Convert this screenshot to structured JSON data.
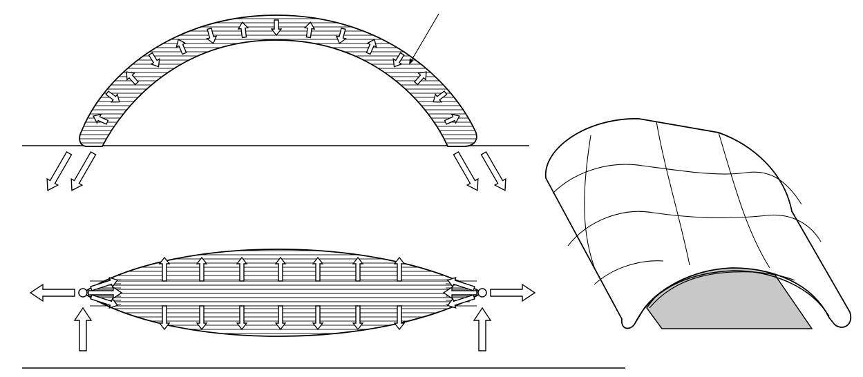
{
  "figure": {
    "stroke_color": "#000000",
    "fill_color": "#ffffff",
    "shading_color": "#c8c8c8",
    "icons": [
      "outward-arrow-icon",
      "inward-arrow-icon",
      "hinge-icon"
    ]
  }
}
